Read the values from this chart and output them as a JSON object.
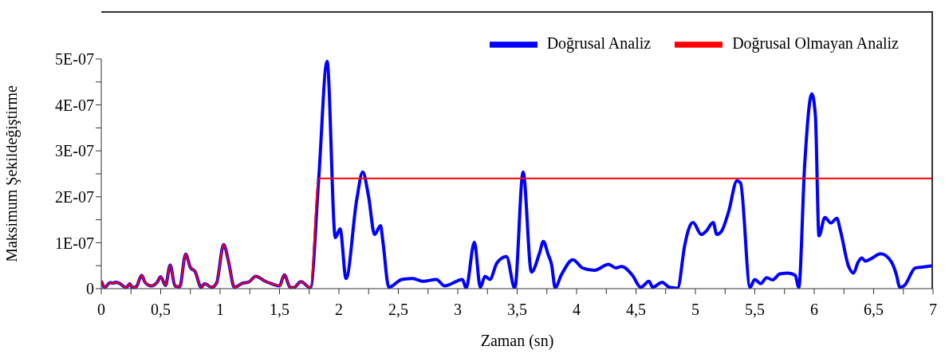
{
  "chart_data": {
    "type": "line",
    "xlabel": "Zaman (sn)",
    "ylabel": "Maksimum Şekildeğiştirme",
    "xlim": [
      0,
      7
    ],
    "xticks": [
      0,
      {
        "value": 0.25,
        "label": null
      },
      {
        "value": 0.5,
        "label": "0,5"
      },
      {
        "value": 0.75,
        "label": null
      },
      1,
      {
        "value": 1.25,
        "label": null
      },
      {
        "value": 1.5,
        "label": "1,5"
      },
      {
        "value": 1.75,
        "label": null
      },
      2,
      {
        "value": 2.25,
        "label": null
      },
      {
        "value": 2.5,
        "label": "2,5"
      },
      {
        "value": 2.75,
        "label": null
      },
      3,
      {
        "value": 3.25,
        "label": null
      },
      {
        "value": 3.5,
        "label": "3,5"
      },
      {
        "value": 3.75,
        "label": null
      },
      4,
      {
        "value": 4.25,
        "label": null
      },
      {
        "value": 4.5,
        "label": "4,5"
      },
      {
        "value": 4.75,
        "label": null
      },
      5,
      {
        "value": 5.25,
        "label": null
      },
      {
        "value": 5.5,
        "label": "5,5"
      },
      {
        "value": 5.75,
        "label": null
      },
      6,
      {
        "value": 6.25,
        "label": null
      },
      {
        "value": 6.5,
        "label": "6,5"
      },
      {
        "value": 6.75,
        "label": null
      },
      7
    ],
    "ylim": [
      0,
      5e-07
    ],
    "yticks": [
      0,
      {
        "value": 5e-08,
        "label": null
      },
      {
        "value": 1e-07,
        "label": "1E-07"
      },
      {
        "value": 1.5e-07,
        "label": null
      },
      {
        "value": 2e-07,
        "label": "2E-07"
      },
      {
        "value": 2.5e-07,
        "label": null
      },
      {
        "value": 3e-07,
        "label": "3E-07"
      },
      {
        "value": 3.5e-07,
        "label": null
      },
      {
        "value": 4e-07,
        "label": "4E-07"
      },
      {
        "value": 4.5e-07,
        "label": null
      },
      {
        "value": 5e-07,
        "label": "5E-07"
      }
    ],
    "legend": "top right",
    "line_style": "solid",
    "series": [
      {
        "name": "Doğrusal Analiz",
        "color": "#0000ff",
        "x": [
          0,
          0.03,
          0.075,
          0.1,
          0.12,
          0.15,
          0.21,
          0.24,
          0.26,
          0.29,
          0.34,
          0.37,
          0.42,
          0.47,
          0.5,
          0.54,
          0.58,
          0.62,
          0.66,
          0.71,
          0.75,
          0.79,
          0.84,
          0.87,
          0.93,
          0.97,
          1.03,
          1.07,
          1.12,
          1.19,
          1.24,
          1.3,
          1.38,
          1.43,
          1.5,
          1.54,
          1.59,
          1.62,
          1.68,
          1.76,
          1.83,
          1.9,
          1.97,
          2.01,
          2.06,
          2.15,
          2.2,
          2.25,
          2.3,
          2.35,
          2.37,
          2.42,
          2.53,
          2.62,
          2.71,
          2.82,
          2.89,
          3.04,
          3.07,
          3.14,
          3.19,
          3.23,
          3.27,
          3.33,
          3.41,
          3.48,
          3.55,
          3.62,
          3.69,
          3.72,
          3.76,
          3.79,
          3.82,
          3.87,
          3.97,
          4.05,
          4.15,
          4.27,
          4.33,
          4.38,
          4.47,
          4.54,
          4.61,
          4.64,
          4.72,
          4.78,
          4.85,
          4.91,
          4.94,
          4.98,
          5.05,
          5.09,
          5.15,
          5.18,
          5.22,
          5.28,
          5.35,
          5.38,
          5.46,
          5.5,
          5.55,
          5.6,
          5.65,
          5.71,
          5.78,
          5.84,
          5.87,
          5.92,
          5.98,
          6.01,
          6.04,
          6.09,
          6.14,
          6.19,
          6.22,
          6.29,
          6.33,
          6.37,
          6.4,
          6.43,
          6.47,
          6.56,
          6.65,
          6.69,
          6.72,
          6.76,
          6.85,
          6.91,
          7
        ],
        "values": [
          1.7e-08,
          3e-09,
          1.3e-08,
          1.2e-08,
          1.4e-08,
          1.2e-08,
          2e-09,
          1.1e-08,
          3e-09,
          3e-09,
          2.9e-08,
          1.3e-08,
          6e-09,
          1.4e-08,
          2.6e-08,
          7e-09,
          5.1e-08,
          6e-09,
          4e-09,
          7.5e-08,
          4.6e-08,
          3.7e-08,
          3e-09,
          1.1e-08,
          3e-09,
          1.2e-08,
          9.6e-08,
          6e-08,
          3e-09,
          1.2e-08,
          1.4e-08,
          2.7e-08,
          1.6e-08,
          1.1e-08,
          6e-09,
          3e-08,
          3e-09,
          2e-09,
          1.5e-08,
          2e-09,
          2.4e-07,
          4.95e-07,
          1.11e-07,
          1.3e-07,
          2.2e-08,
          1.94e-07,
          2.54e-07,
          2e-07,
          1.18e-07,
          1.37e-07,
          1.03e-07,
          3e-09,
          2e-08,
          2.2e-08,
          1.6e-08,
          2e-08,
          6e-09,
          2e-08,
          1e-09,
          1.01e-07,
          3e-09,
          2.7e-08,
          2e-08,
          5.6e-08,
          7e-08,
          1e-09,
          2.54e-07,
          3.6e-08,
          7.9e-08,
          1.03e-07,
          7.5e-08,
          5.2e-08,
          2e-09,
          2.9e-08,
          6.3e-08,
          4.5e-08,
          4e-08,
          5.3e-08,
          4.5e-08,
          4.8e-08,
          2.9e-08,
          3e-09,
          1.6e-08,
          3e-09,
          1.4e-08,
          3e-09,
          1e-09,
          9.4e-08,
          1.27e-07,
          1.44e-07,
          1.18e-07,
          1.25e-07,
          1.44e-07,
          1.18e-07,
          1.25e-07,
          1.68e-07,
          2.35e-07,
          2.3e-07,
          3e-09,
          2e-08,
          1.1e-08,
          2.4e-08,
          1.9e-08,
          3.2e-08,
          3.4e-08,
          2.9e-08,
          3e-09,
          2.71e-07,
          4.24e-07,
          3.76e-07,
          1.15e-07,
          1.55e-07,
          1.43e-07,
          1.53e-07,
          1.27e-07,
          4.8e-08,
          3.4e-08,
          5.8e-08,
          6.7e-08,
          6e-08,
          6.4e-08,
          7.6e-08,
          5.8e-08,
          3.2e-08,
          3e-09,
          7e-09,
          4.5e-08,
          4.7e-08,
          5e-08
        ]
      },
      {
        "name": "Doğrusal Olmayan Analiz",
        "color": "#ff0000",
        "x": [
          0,
          0.03,
          0.075,
          0.1,
          0.12,
          0.15,
          0.21,
          0.24,
          0.26,
          0.29,
          0.34,
          0.37,
          0.42,
          0.47,
          0.5,
          0.54,
          0.58,
          0.62,
          0.66,
          0.71,
          0.75,
          0.79,
          0.84,
          0.87,
          0.93,
          0.97,
          1.03,
          1.07,
          1.12,
          1.19,
          1.24,
          1.3,
          1.38,
          1.43,
          1.5,
          1.54,
          1.59,
          1.62,
          1.68,
          1.76,
          1.83,
          7
        ],
        "values": [
          1.7e-08,
          3e-09,
          1.3e-08,
          1.2e-08,
          1.4e-08,
          1.2e-08,
          2e-09,
          1.1e-08,
          3e-09,
          3e-09,
          2.9e-08,
          1.3e-08,
          6e-09,
          1.4e-08,
          2.6e-08,
          7e-09,
          5.1e-08,
          6e-09,
          4e-09,
          7.5e-08,
          4.6e-08,
          3.7e-08,
          3e-09,
          1.1e-08,
          3e-09,
          1.2e-08,
          9.6e-08,
          6e-08,
          3e-09,
          1.2e-08,
          1.4e-08,
          2.7e-08,
          1.6e-08,
          1.1e-08,
          6e-09,
          3e-08,
          3e-09,
          2e-09,
          1.5e-08,
          2e-09,
          2.4e-07,
          2.4e-07
        ]
      }
    ]
  }
}
